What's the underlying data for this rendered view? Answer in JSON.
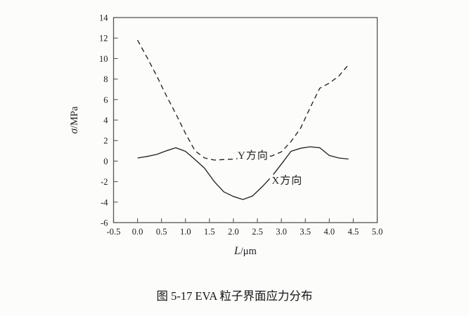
{
  "figure": {
    "caption": "图 5-17 EVA 粒子界面应力分布"
  },
  "chart_data": {
    "type": "line",
    "title": "",
    "xlabel": "L/μm",
    "xlabel_symbol": "L",
    "xlabel_rest": "/μm",
    "ylabel": "σ/MPa",
    "ylabel_symbol": "σ",
    "ylabel_rest": "/MPa",
    "xlim": [
      -0.5,
      5.0
    ],
    "ylim": [
      -6,
      14
    ],
    "grid": false,
    "legend_position": "inline-annotations",
    "x_ticks": [
      "-0.5",
      "0.0",
      "0.5",
      "1.0",
      "1.5",
      "2.0",
      "2.5",
      "3.0",
      "3.5",
      "4.0",
      "4.5",
      "5.0"
    ],
    "y_ticks": [
      "14",
      "12",
      "10",
      "8",
      "6",
      "4",
      "2",
      "0",
      "-2",
      "-4",
      "-6"
    ],
    "x": [
      0.0,
      0.2,
      0.4,
      0.6,
      0.8,
      1.0,
      1.2,
      1.4,
      1.6,
      1.8,
      2.0,
      2.2,
      2.4,
      2.6,
      2.8,
      3.0,
      3.2,
      3.4,
      3.6,
      3.8,
      4.0,
      4.2,
      4.4
    ],
    "series": [
      {
        "name": "Y方向",
        "style": "dashed",
        "values": [
          11.8,
          10.1,
          8.3,
          6.4,
          4.6,
          2.7,
          1.0,
          0.3,
          0.1,
          0.15,
          0.2,
          0.3,
          0.35,
          0.4,
          0.5,
          0.9,
          1.9,
          3.2,
          5.2,
          7.1,
          7.6,
          8.3,
          9.4
        ],
        "label_pos": {
          "x": 2.41,
          "y": 0.25
        }
      },
      {
        "name": "X方向",
        "style": "solid",
        "values": [
          0.3,
          0.45,
          0.65,
          1.0,
          1.3,
          0.95,
          0.15,
          -0.7,
          -2.0,
          -3.0,
          -3.45,
          -3.75,
          -3.4,
          -2.5,
          -1.5,
          -0.3,
          0.95,
          1.25,
          1.4,
          1.3,
          0.55,
          0.3,
          0.2
        ],
        "label_pos": {
          "x": 3.12,
          "y": -2.2
        }
      }
    ],
    "colors": {
      "line": "#222222",
      "frame": "#555555",
      "text": "#1b1b1b",
      "background": "#fcfcfb"
    }
  }
}
